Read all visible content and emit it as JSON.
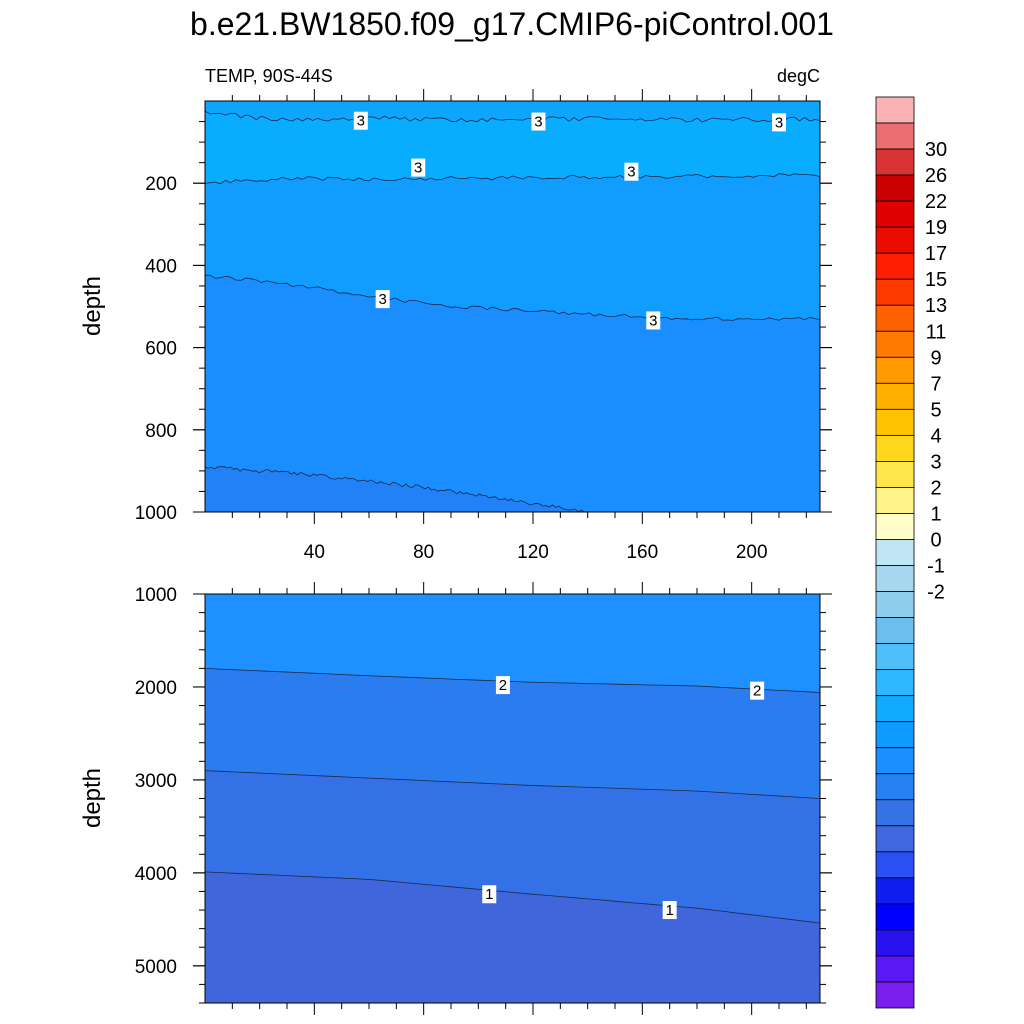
{
  "title": "b.e21.BW1850.f09_g17.CMIP6-piControl.001",
  "chart_data": [
    {
      "type": "contour",
      "panel": "upper",
      "title_left": "TEMP, 90S-44S",
      "title_right": "degC",
      "ylabel": "depth",
      "xlabel": "",
      "xlim": [
        0,
        225
      ],
      "ylim": [
        0,
        1000
      ],
      "y_inverted": true,
      "x_tick_labels": [
        "40",
        "80",
        "120",
        "160",
        "200"
      ],
      "y_tick_labels": [
        "200",
        "400",
        "600",
        "800",
        "1000"
      ],
      "regions": [
        {
          "level_range": "2.5-3",
          "color": "#0EA5FF",
          "upper_boundary_x": [
            0,
            225
          ],
          "upper_boundary_y": [
            0,
            0
          ]
        },
        {
          "level_range": "3-3.5",
          "color": "#08ADFF",
          "upper_boundary_x": [
            0,
            30,
            60,
            100,
            140,
            180,
            225
          ],
          "upper_boundary_y": [
            30,
            45,
            42,
            46,
            43,
            47,
            43
          ]
        },
        {
          "level_range": "2.5-3",
          "color": "#109DFF",
          "upper_boundary_x": [
            0,
            30,
            60,
            100,
            140,
            180,
            225
          ],
          "upper_boundary_y": [
            200,
            188,
            190,
            188,
            185,
            183,
            180
          ]
        },
        {
          "level_range": "2-2.5",
          "color": "#1A8DFF",
          "upper_boundary_x": [
            0,
            30,
            60,
            90,
            130,
            170,
            225
          ],
          "upper_boundary_y": [
            425,
            445,
            475,
            500,
            515,
            530,
            530
          ]
        },
        {
          "level_range": "1.5-2",
          "color": "#2281F6",
          "upper_boundary_x": [
            0,
            40,
            80,
            110,
            130,
            140
          ],
          "upper_boundary_y": [
            890,
            910,
            940,
            970,
            990,
            1000
          ]
        }
      ],
      "contour_labels": [
        {
          "text": "3",
          "x": 57,
          "y": 48
        },
        {
          "text": "3",
          "x": 122,
          "y": 50
        },
        {
          "text": "3",
          "x": 210,
          "y": 52
        },
        {
          "text": "3",
          "x": 78,
          "y": 162
        },
        {
          "text": "3",
          "x": 156,
          "y": 172
        },
        {
          "text": "3",
          "x": 65,
          "y": 482
        },
        {
          "text": "3",
          "x": 164,
          "y": 534
        }
      ]
    },
    {
      "type": "contour",
      "panel": "lower",
      "ylabel": "depth",
      "xlabel": "",
      "xlim": [
        0,
        225
      ],
      "ylim": [
        1000,
        5400
      ],
      "y_inverted": true,
      "y_tick_labels": [
        "1000",
        "2000",
        "3000",
        "4000",
        "5000"
      ],
      "regions": [
        {
          "level_range": "1.5-2",
          "color": "#1E90FF",
          "upper_boundary_x": [
            0,
            225
          ],
          "upper_boundary_y": [
            1000,
            1000
          ]
        },
        {
          "level_range": "1-1.5",
          "color": "#2B7CEE",
          "upper_boundary_x": [
            0,
            60,
            120,
            180,
            225
          ],
          "upper_boundary_y": [
            1800,
            1880,
            1950,
            1990,
            2060
          ]
        },
        {
          "level_range": "0.5-1",
          "color": "#3471E6",
          "upper_boundary_x": [
            0,
            60,
            120,
            180,
            225
          ],
          "upper_boundary_y": [
            2900,
            2980,
            3060,
            3120,
            3200
          ]
        },
        {
          "level_range": "0-0.5",
          "color": "#4166DC",
          "upper_boundary_x": [
            0,
            60,
            120,
            180,
            225
          ],
          "upper_boundary_y": [
            3990,
            4070,
            4230,
            4380,
            4540
          ]
        }
      ],
      "contour_labels": [
        {
          "text": "2",
          "x": 109,
          "y": 1980
        },
        {
          "text": "2",
          "x": 202,
          "y": 2040
        },
        {
          "text": "1",
          "x": 104,
          "y": 4230
        },
        {
          "text": "1",
          "x": 170,
          "y": 4400
        }
      ]
    }
  ],
  "colorbar": {
    "labels": [
      "30",
      "26",
      "22",
      "19",
      "17",
      "15",
      "13",
      "11",
      "9",
      "7",
      "5",
      "4",
      "3",
      "2",
      "1",
      "0",
      "-1",
      "-2"
    ],
    "colors": [
      "#FAB2B4",
      "#EC6E70",
      "#DA3333",
      "#C80000",
      "#DF0000",
      "#EB0C00",
      "#FF1E00",
      "#FF3A00",
      "#FF6000",
      "#FF7A00",
      "#FF9A00",
      "#FFAF00",
      "#FFC400",
      "#FFD81E",
      "#FFE74B",
      "#FFF286",
      "#FFFDC8",
      "#BFE4F2",
      "#A6D7EF",
      "#8ECDEB",
      "#6ABFEF",
      "#4EBFF8",
      "#2EB7FF",
      "#10AAFF",
      "#0E9BFF",
      "#1A8DFF",
      "#2680F2",
      "#3472E6",
      "#3F68DE",
      "#2850F2",
      "#0F1EF0",
      "#0000FF",
      "#2812EE",
      "#5A19F4",
      "#7A1EEE"
    ]
  }
}
